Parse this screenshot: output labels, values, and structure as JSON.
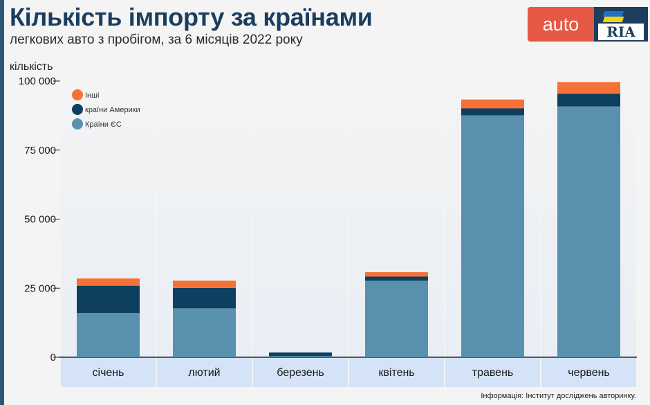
{
  "header": {
    "title": "Кількість імпорту за країнами",
    "subtitle": "легкових авто з пробігом, за 6 місяців 2022 року"
  },
  "logo": {
    "auto_text": "auto",
    "ria_text": "RIA"
  },
  "footer": {
    "source": "Інформація: Інститут досліджень авторинку."
  },
  "colors": {
    "eu": "#5990ad",
    "america": "#0e3f5e",
    "other": "#f57136",
    "category_band": "#d4e3f7",
    "axis": "#222222"
  },
  "chart_data": {
    "type": "bar",
    "stacked": true,
    "title": "Кількість імпорту за країнами",
    "subtitle": "легкових авто з пробігом, за 6 місяців 2022 року",
    "ylabel": "кількість",
    "xlabel": "",
    "ylim": [
      0,
      100000
    ],
    "yticks": [
      0,
      25000,
      50000,
      75000,
      100000
    ],
    "ytick_labels": [
      "0",
      "25 000",
      "50 000",
      "75 000",
      "100 000"
    ],
    "categories": [
      "січень",
      "лютий",
      "березень",
      "квітень",
      "травень",
      "червень"
    ],
    "series": [
      {
        "name": "Країни ЄС",
        "color": "#5990ad",
        "values": [
          16000,
          17700,
          400,
          27700,
          87600,
          90800
        ]
      },
      {
        "name": "країни Америки",
        "color": "#0e3f5e",
        "values": [
          9900,
          7400,
          1300,
          1500,
          2500,
          4600
        ]
      },
      {
        "name": "Інші",
        "color": "#f57136",
        "values": [
          2600,
          2600,
          0,
          1600,
          3200,
          4200
        ]
      }
    ],
    "legend_order": [
      "Інші",
      "країни Америки",
      "Країни ЄС"
    ],
    "legend_position": "top-left",
    "grid": false
  }
}
